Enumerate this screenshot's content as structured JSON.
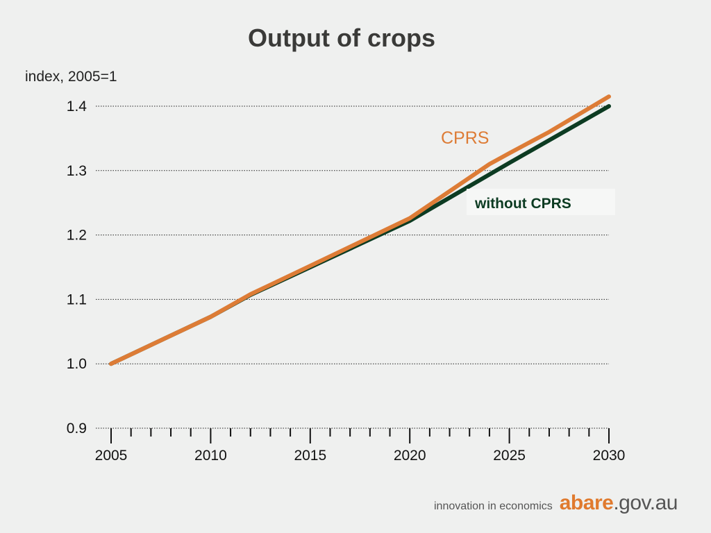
{
  "footer": {
    "tagline": "innovation in economics",
    "logo_brand": "abare",
    "logo_domain": ".gov.au"
  },
  "chart_data": {
    "type": "line",
    "title": "Output of crops",
    "ylabel": "index, 2005=1",
    "xlabel": "",
    "xlim": [
      2005,
      2030
    ],
    "ylim": [
      0.9,
      1.4
    ],
    "yticks": [
      "0.9",
      "1.0",
      "1.1",
      "1.2",
      "1.3",
      "1.4"
    ],
    "xticks": [
      "2005",
      "2010",
      "2015",
      "2020",
      "2025",
      "2030"
    ],
    "grid": true,
    "series": [
      {
        "name": "without CPRS",
        "color": "#0c3b22",
        "x": [
          2005,
          2010,
          2012,
          2015,
          2020,
          2025,
          2030
        ],
        "y": [
          1.0,
          1.073,
          1.107,
          1.15,
          1.222,
          1.312,
          1.4
        ]
      },
      {
        "name": "CPRS",
        "color": "#dd7c36",
        "x": [
          2005,
          2010,
          2012,
          2015,
          2020,
          2022,
          2024,
          2025,
          2027,
          2030
        ],
        "y": [
          1.0,
          1.073,
          1.108,
          1.152,
          1.226,
          1.268,
          1.31,
          1.327,
          1.36,
          1.415
        ]
      }
    ]
  }
}
